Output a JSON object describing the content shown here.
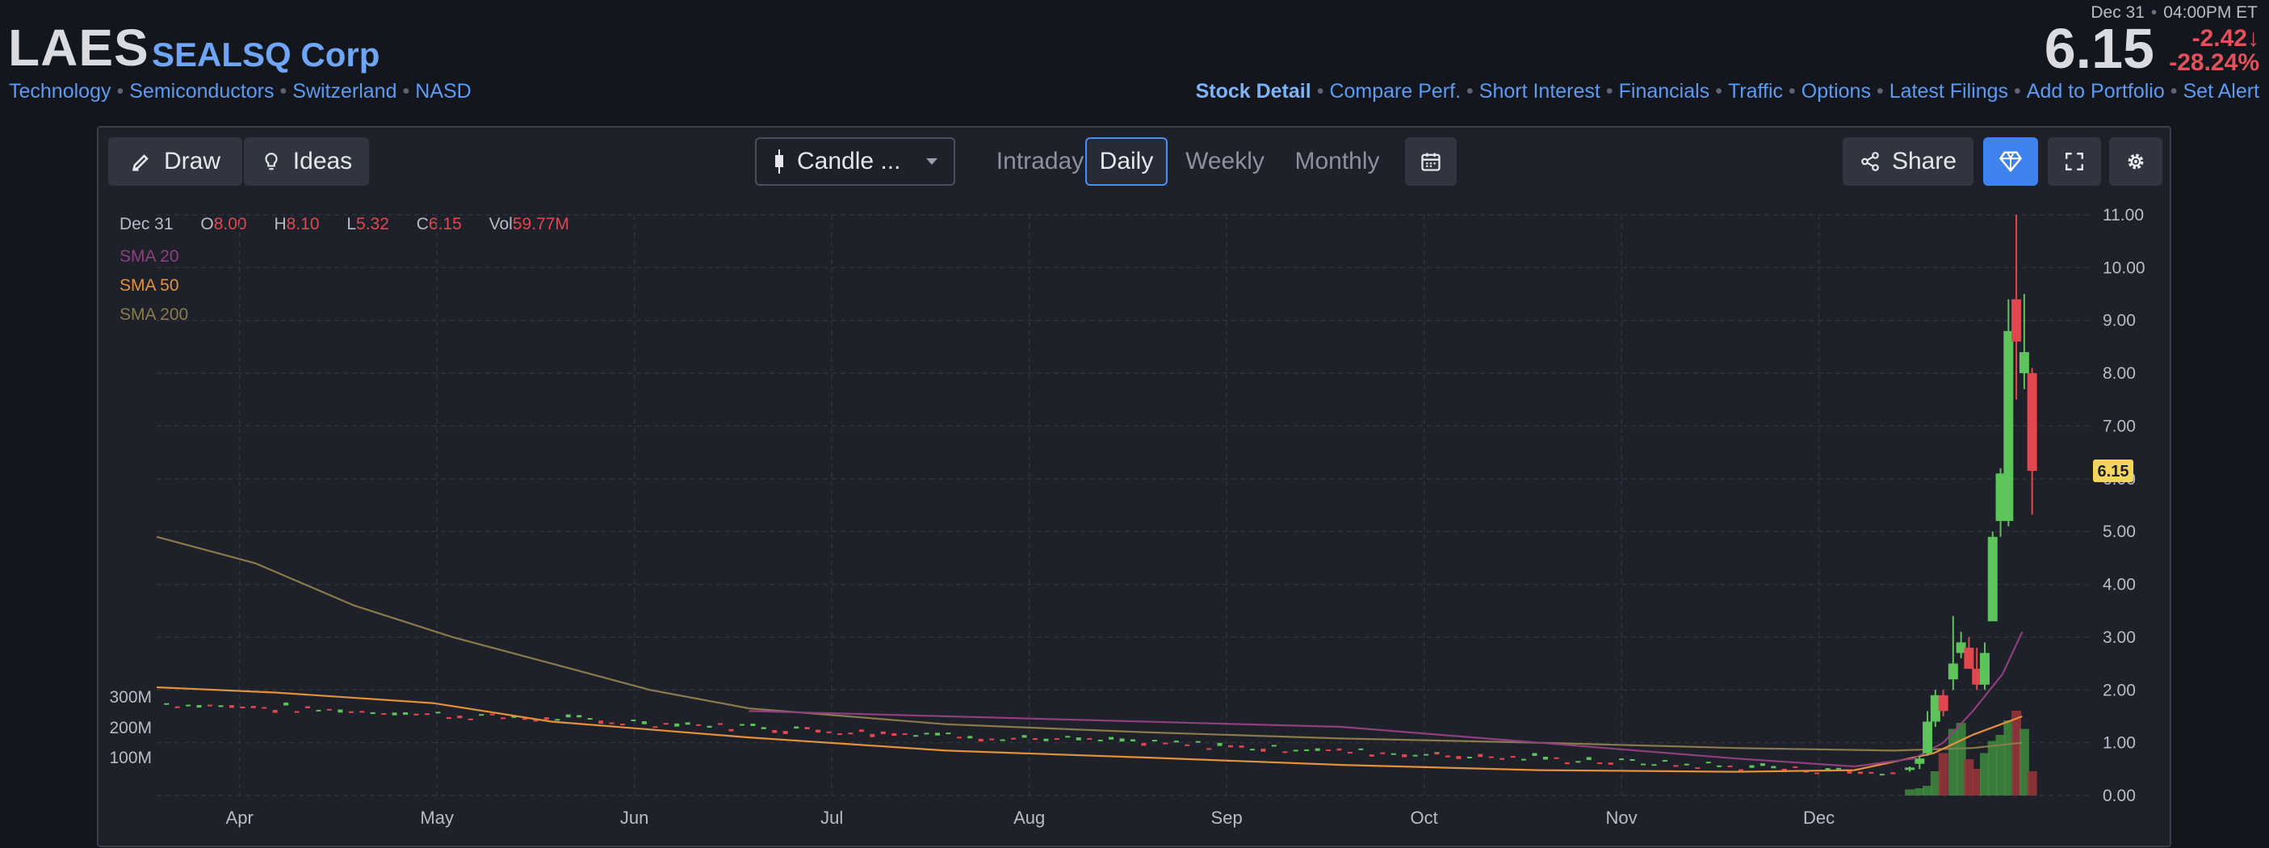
{
  "header": {
    "ticker": "LAES",
    "company": "SEALSQ Corp",
    "categories": [
      "Technology",
      "Semiconductors",
      "Switzerland",
      "NASD"
    ],
    "quote_date": "Dec 31",
    "quote_time": "04:00PM ET",
    "price": "6.15",
    "change": "-2.42",
    "change_pct": "-28.24",
    "nav_links": [
      "Stock Detail",
      "Compare Perf.",
      "Short Interest",
      "Financials",
      "Traffic",
      "Options",
      "Latest Filings",
      "Add to Portfolio",
      "Set Alert"
    ]
  },
  "toolbar": {
    "draw_label": "Draw",
    "ideas_label": "Ideas",
    "chart_type_label": "Candle ...",
    "timeframes": [
      "Intraday",
      "Daily",
      "Weekly",
      "Monthly"
    ],
    "active_timeframe": "Daily",
    "share_label": "Share"
  },
  "ohlc": {
    "date": "Dec 31",
    "o_label": "O",
    "o": "8.00",
    "h_label": "H",
    "h": "8.10",
    "l_label": "L",
    "l": "5.32",
    "c_label": "C",
    "c": "6.15",
    "vol_label": "Vol",
    "vol": "59.77M"
  },
  "legend": [
    {
      "label": "SMA 20",
      "color": "#8e3f7c"
    },
    {
      "label": "SMA 50",
      "color": "#e3913a"
    },
    {
      "label": "SMA 200",
      "color": "#8a7a4c"
    }
  ],
  "colors": {
    "up": "#5cc45a",
    "down": "#e2474f",
    "grid": "#2e323d",
    "price_tag": "#f4d35e",
    "accent": "#3e82ee"
  },
  "chart_data": {
    "type": "candlestick",
    "x_tick_labels": [
      "Apr",
      "May",
      "Jun",
      "Jul",
      "Aug",
      "Sep",
      "Oct",
      "Nov",
      "Dec"
    ],
    "y_ticks": [
      "0.00",
      "1.00",
      "2.00",
      "3.00",
      "4.00",
      "5.00",
      "6.00",
      "7.00",
      "8.00",
      "9.00",
      "10.00",
      "11.00"
    ],
    "ylim": [
      0,
      11
    ],
    "volume_ticks": [
      "100M",
      "200M",
      "300M"
    ],
    "last_price_label": "6.15",
    "sma20": [
      [
        3,
        1.6
      ],
      [
        6,
        1.3
      ],
      [
        8,
        0.7
      ],
      [
        8.6,
        0.55
      ],
      [
        8.9,
        0.7
      ],
      [
        9.05,
        1.0
      ],
      [
        9.2,
        1.6
      ],
      [
        9.35,
        2.3
      ],
      [
        9.45,
        3.1
      ]
    ],
    "sma50": [
      [
        0,
        2.05
      ],
      [
        0.6,
        1.95
      ],
      [
        1.4,
        1.75
      ],
      [
        2,
        1.4
      ],
      [
        3,
        1.1
      ],
      [
        4,
        0.85
      ],
      [
        5,
        0.72
      ],
      [
        6,
        0.58
      ],
      [
        7,
        0.48
      ],
      [
        8,
        0.45
      ],
      [
        8.6,
        0.48
      ],
      [
        9,
        0.8
      ],
      [
        9.2,
        1.15
      ],
      [
        9.45,
        1.5
      ]
    ],
    "sma200": [
      [
        0,
        4.9
      ],
      [
        0.5,
        4.4
      ],
      [
        1,
        3.6
      ],
      [
        1.5,
        3.0
      ],
      [
        2,
        2.5
      ],
      [
        2.5,
        2.0
      ],
      [
        3,
        1.65
      ],
      [
        4,
        1.35
      ],
      [
        5,
        1.2
      ],
      [
        6,
        1.08
      ],
      [
        7,
        1.0
      ],
      [
        8,
        0.9
      ],
      [
        8.8,
        0.85
      ],
      [
        9.2,
        0.9
      ],
      [
        9.45,
        1.0
      ]
    ],
    "candles": [
      {
        "x": 8.88,
        "o": 0.5,
        "h": 0.55,
        "l": 0.45,
        "c": 0.53
      },
      {
        "x": 8.93,
        "o": 0.6,
        "h": 0.75,
        "l": 0.5,
        "c": 0.7
      },
      {
        "x": 8.97,
        "o": 0.8,
        "h": 1.6,
        "l": 0.75,
        "c": 1.4
      },
      {
        "x": 9.01,
        "o": 1.4,
        "h": 2.0,
        "l": 1.3,
        "c": 1.9
      },
      {
        "x": 9.05,
        "o": 1.9,
        "h": 2.0,
        "l": 1.5,
        "c": 1.6
      },
      {
        "x": 9.1,
        "o": 2.2,
        "h": 3.4,
        "l": 2.0,
        "c": 2.5
      },
      {
        "x": 9.14,
        "o": 2.7,
        "h": 3.1,
        "l": 2.6,
        "c": 2.9
      },
      {
        "x": 9.18,
        "o": 2.8,
        "h": 3.0,
        "l": 2.4,
        "c": 2.4
      },
      {
        "x": 9.22,
        "o": 2.4,
        "h": 2.8,
        "l": 2.0,
        "c": 2.1
      },
      {
        "x": 9.26,
        "o": 2.1,
        "h": 2.9,
        "l": 2.0,
        "c": 2.7
      },
      {
        "x": 9.3,
        "o": 3.3,
        "h": 5.0,
        "l": 3.4,
        "c": 4.9
      },
      {
        "x": 9.34,
        "o": 5.2,
        "h": 6.2,
        "l": 4.9,
        "c": 6.1
      },
      {
        "x": 9.38,
        "o": 5.2,
        "h": 9.4,
        "l": 5.1,
        "c": 8.8
      },
      {
        "x": 9.42,
        "o": 9.4,
        "h": 11.0,
        "l": 7.5,
        "c": 8.6
      },
      {
        "x": 9.46,
        "o": 8.0,
        "h": 9.5,
        "l": 7.7,
        "c": 8.4
      },
      {
        "x": 9.5,
        "o": 8.0,
        "h": 8.1,
        "l": 5.32,
        "c": 6.15
      }
    ]
  }
}
